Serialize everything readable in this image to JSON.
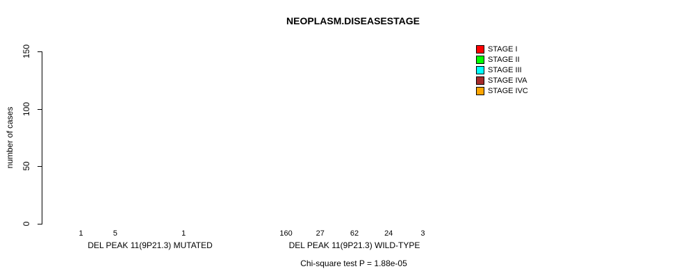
{
  "chart_data": {
    "type": "bar",
    "title": "NEOPLASM.DISEASESTAGE",
    "xlabel": "",
    "ylabel": "number of cases",
    "ylim": [
      0,
      150
    ],
    "yticks": [
      0,
      50,
      100,
      150
    ],
    "grid": false,
    "legend_position": "top-right",
    "categories": [
      "DEL PEAK 11(9P21.3) MUTATED",
      "DEL PEAK 11(9P21.3) WILD-TYPE"
    ],
    "series": [
      {
        "name": "STAGE I",
        "color": "#FF0000",
        "values": [
          1,
          160
        ]
      },
      {
        "name": "STAGE II",
        "color": "#00FF00",
        "values": [
          5,
          27
        ]
      },
      {
        "name": "STAGE III",
        "color": "#00FFFF",
        "values": [
          0,
          62
        ]
      },
      {
        "name": "STAGE IVA",
        "color": "#A52A2A",
        "values": [
          1,
          24
        ]
      },
      {
        "name": "STAGE IVC",
        "color": "#FFA500",
        "values": [
          0,
          3
        ]
      }
    ],
    "bar_value_labels": [
      [
        "1",
        "5",
        "",
        "1",
        ""
      ],
      [
        "160",
        "27",
        "62",
        "24",
        "3"
      ]
    ],
    "annotation": "Chi-square test P = 1.88e-05"
  }
}
